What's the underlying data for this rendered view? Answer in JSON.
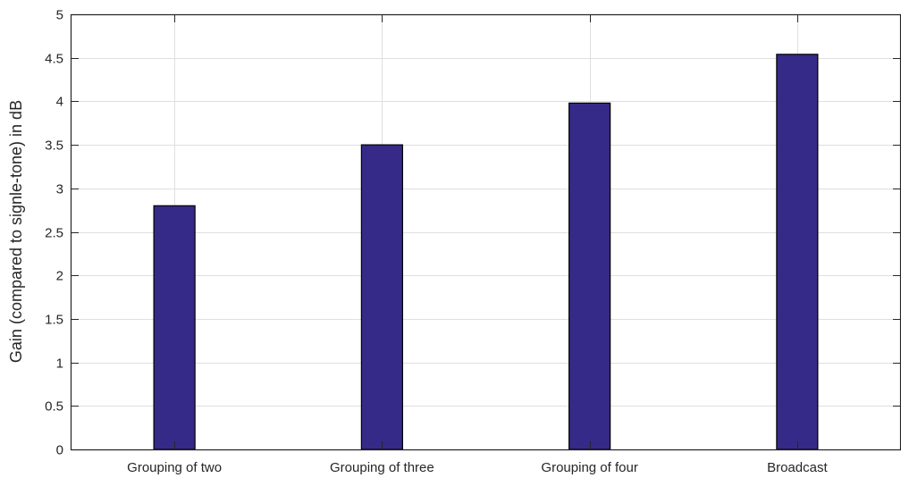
{
  "chart_data": {
    "type": "bar",
    "title": "",
    "xlabel": "",
    "ylabel": "Gain (compared to signle-tone) in dB",
    "categories": [
      "Grouping of two",
      "Grouping of three",
      "Grouping of four",
      "Broadcast"
    ],
    "values": [
      2.8,
      3.5,
      3.98,
      4.54
    ],
    "ylim": [
      0,
      5
    ],
    "yticks": [
      0,
      0.5,
      1,
      1.5,
      2,
      2.5,
      3,
      3.5,
      4,
      4.5,
      5
    ],
    "ytick_labels": [
      "0",
      "0.5",
      "1",
      "1.5",
      "2",
      "2.5",
      "3",
      "3.5",
      "4",
      "4.5",
      "5"
    ],
    "grid": true,
    "colors": {
      "bar_fill": "#352a87",
      "bar_stroke": "#000000",
      "grid": "#dfdfdf",
      "axis": "#262626"
    }
  }
}
